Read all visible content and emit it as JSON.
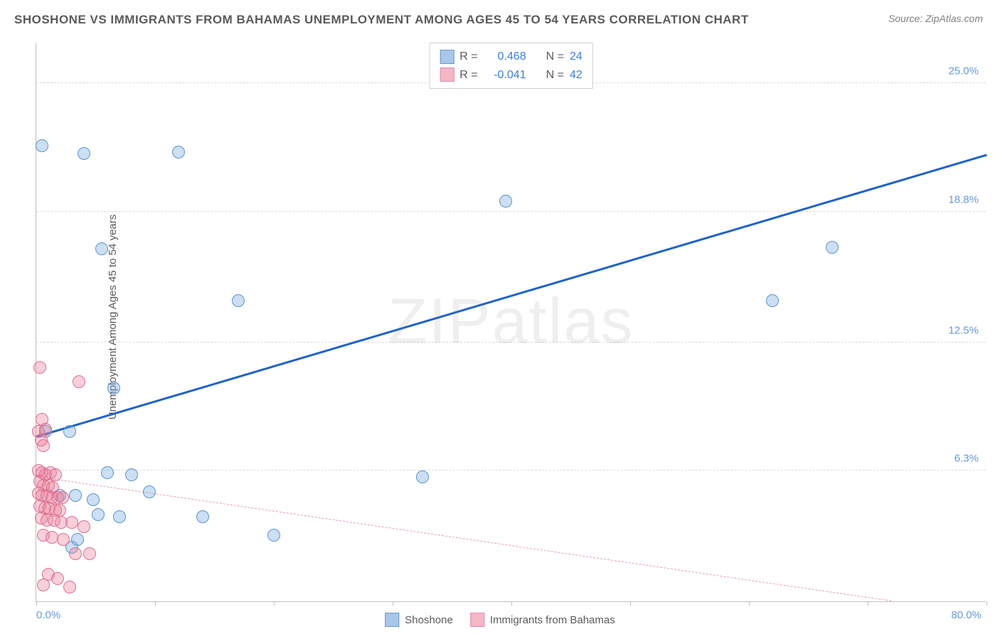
{
  "title": "SHOSHONE VS IMMIGRANTS FROM BAHAMAS UNEMPLOYMENT AMONG AGES 45 TO 54 YEARS CORRELATION CHART",
  "source": "Source: ZipAtlas.com",
  "ylabel": "Unemployment Among Ages 45 to 54 years",
  "watermark_a": "ZIP",
  "watermark_b": "atlas",
  "chart": {
    "type": "scatter",
    "background_color": "#ffffff",
    "grid_color": "#d9d9d9",
    "border_color": "#bfbfbf",
    "xlim": [
      0,
      80
    ],
    "ylim": [
      0,
      27
    ],
    "xticks": [
      0,
      10,
      20,
      30,
      40,
      50,
      60,
      70,
      80
    ],
    "xtick_labels": {
      "0": "0.0%",
      "80": "80.0%"
    },
    "yticks": [
      6.3,
      12.5,
      18.8,
      25.0
    ],
    "ytick_labels": [
      "6.3%",
      "12.5%",
      "18.8%",
      "25.0%"
    ],
    "marker_radius": 9,
    "marker_stroke": 1,
    "axis_label_color": "#6699dd",
    "axis_label_fontsize": 15
  },
  "series": [
    {
      "name": "Shoshone",
      "fill": "rgba(108,162,220,0.35)",
      "stroke": "#5a94cc",
      "swatch_fill": "#a9c7e8",
      "swatch_border": "#6b98c9",
      "r_value": "0.468",
      "n_value": "24",
      "trend": {
        "x1": 0,
        "y1": 7.9,
        "x2": 80,
        "y2": 21.5,
        "color": "#1f63c7",
        "width": 3,
        "dash": "solid"
      },
      "points": [
        [
          0.5,
          22.0
        ],
        [
          4.0,
          21.6
        ],
        [
          12.0,
          21.7
        ],
        [
          5.5,
          17.0
        ],
        [
          17.0,
          14.5
        ],
        [
          39.5,
          19.3
        ],
        [
          62.0,
          14.5
        ],
        [
          67.0,
          17.1
        ],
        [
          6.5,
          10.3
        ],
        [
          2.8,
          8.2
        ],
        [
          0.8,
          8.2
        ],
        [
          2.0,
          5.1
        ],
        [
          3.3,
          5.1
        ],
        [
          4.8,
          4.9
        ],
        [
          5.2,
          4.2
        ],
        [
          7.0,
          4.1
        ],
        [
          6.0,
          6.2
        ],
        [
          9.5,
          5.3
        ],
        [
          8.0,
          6.1
        ],
        [
          3.0,
          2.6
        ],
        [
          3.5,
          3.0
        ],
        [
          14.0,
          4.1
        ],
        [
          20.0,
          3.2
        ],
        [
          32.5,
          6.0
        ]
      ]
    },
    {
      "name": "Immigrants from Bahamas",
      "fill": "rgba(235,120,150,0.35)",
      "stroke": "#dd6e90",
      "swatch_fill": "#f4b7c8",
      "swatch_border": "#e48aa5",
      "r_value": "-0.041",
      "n_value": "42",
      "trend": {
        "x1": 0,
        "y1": 6.0,
        "x2": 72,
        "y2": 0.0,
        "color": "#e99ab0",
        "width": 1.5,
        "dash": "dashed"
      },
      "points": [
        [
          0.3,
          11.3
        ],
        [
          3.6,
          10.6
        ],
        [
          0.5,
          8.8
        ],
        [
          0.2,
          8.2
        ],
        [
          0.8,
          8.3
        ],
        [
          0.4,
          7.8
        ],
        [
          0.6,
          7.5
        ],
        [
          0.2,
          6.3
        ],
        [
          0.5,
          6.2
        ],
        [
          0.8,
          6.1
        ],
        [
          1.2,
          6.2
        ],
        [
          1.6,
          6.1
        ],
        [
          0.3,
          5.8
        ],
        [
          0.6,
          5.6
        ],
        [
          1.0,
          5.6
        ],
        [
          1.4,
          5.5
        ],
        [
          0.2,
          5.2
        ],
        [
          0.5,
          5.1
        ],
        [
          0.9,
          5.1
        ],
        [
          1.3,
          5.0
        ],
        [
          1.8,
          5.0
        ],
        [
          2.2,
          5.0
        ],
        [
          0.3,
          4.6
        ],
        [
          0.7,
          4.5
        ],
        [
          1.1,
          4.5
        ],
        [
          1.6,
          4.4
        ],
        [
          2.0,
          4.4
        ],
        [
          0.4,
          4.0
        ],
        [
          0.9,
          3.9
        ],
        [
          1.5,
          3.9
        ],
        [
          2.1,
          3.8
        ],
        [
          3.0,
          3.8
        ],
        [
          4.0,
          3.6
        ],
        [
          0.6,
          3.2
        ],
        [
          1.3,
          3.1
        ],
        [
          2.3,
          3.0
        ],
        [
          3.3,
          2.3
        ],
        [
          4.5,
          2.3
        ],
        [
          1.0,
          1.3
        ],
        [
          1.8,
          1.1
        ],
        [
          2.8,
          0.7
        ],
        [
          0.6,
          0.8
        ]
      ]
    }
  ],
  "legend_bottom": [
    {
      "label": "Shoshone",
      "swatch_fill": "#a9c7e8",
      "swatch_border": "#6b98c9"
    },
    {
      "label": "Immigrants from Bahamas",
      "swatch_fill": "#f4b7c8",
      "swatch_border": "#e48aa5"
    }
  ],
  "stat_labels": {
    "r": "R =",
    "n": "N ="
  }
}
